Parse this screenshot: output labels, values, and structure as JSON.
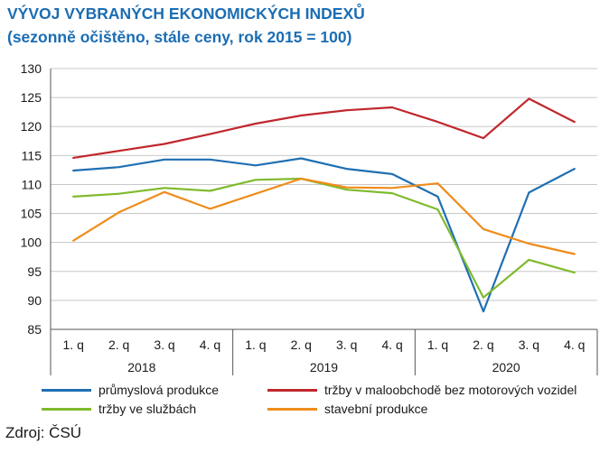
{
  "title": "VÝVOJ VYBRANÝCH EKONOMICKÝCH INDEXŮ",
  "subtitle": "(sezonně očištěno, stále ceny, rok 2015 = 100)",
  "source": "Zdroj: ČSÚ",
  "chart_data": {
    "type": "line",
    "title": "VÝVOJ VYBRANÝCH EKONOMICKÝCH INDEXŮ",
    "subtitle": "(sezonně očištěno, stále ceny, rok 2015 = 100)",
    "categories": [
      "1. q",
      "2. q",
      "3. q",
      "4. q",
      "1. q",
      "2. q",
      "3. q",
      "4. q",
      "1. q",
      "2. q",
      "3. q",
      "4. q"
    ],
    "groups": [
      {
        "label": "2018",
        "span": 4
      },
      {
        "label": "2019",
        "span": 4
      },
      {
        "label": "2020",
        "span": 4
      }
    ],
    "ylim": [
      85,
      130
    ],
    "yticks": [
      85,
      90,
      95,
      100,
      105,
      110,
      115,
      120,
      125,
      130
    ],
    "grid": true,
    "legend_position": "bottom",
    "series": [
      {
        "name": "průmyslová produkce",
        "color": "#1f6fb2",
        "values": [
          112.4,
          113.0,
          114.3,
          114.3,
          113.3,
          114.5,
          112.7,
          111.8,
          107.9,
          88.1,
          108.6,
          112.7
        ]
      },
      {
        "name": "tržby v maloobchodě bez motorových vozidel",
        "color": "#c0272d",
        "values": [
          114.6,
          115.8,
          117.0,
          118.7,
          120.5,
          121.9,
          122.8,
          123.3,
          120.8,
          118.0,
          124.8,
          120.8
        ]
      },
      {
        "name": "tržby ve službách",
        "color": "#7fba2c",
        "values": [
          107.9,
          108.4,
          109.4,
          108.9,
          110.8,
          111.0,
          109.1,
          108.5,
          105.7,
          90.5,
          97.0,
          94.8
        ]
      },
      {
        "name": "stavební produkce",
        "color": "#ef8c1b",
        "values": [
          100.3,
          105.2,
          108.7,
          105.8,
          108.4,
          111.0,
          109.5,
          109.4,
          110.2,
          102.3,
          99.8,
          98.0
        ]
      }
    ]
  }
}
